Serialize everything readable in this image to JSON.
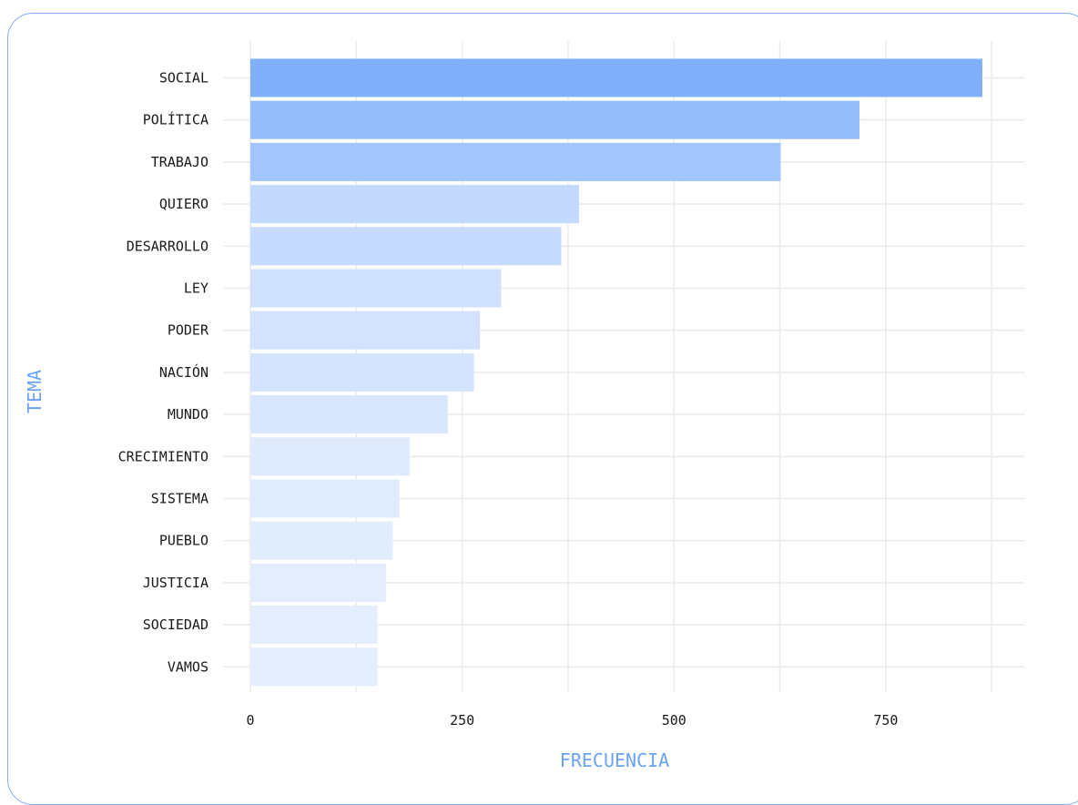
{
  "chart_data": {
    "type": "bar",
    "orientation": "horizontal",
    "title": "",
    "xlabel": "FRECUENCIA",
    "ylabel": "TEMA",
    "categories": [
      "SOCIAL",
      "POLÍTICA",
      "TRABAJO",
      "QUIERO",
      "DESARROLLO",
      "LEY",
      "PODER",
      "NACIÓN",
      "MUNDO",
      "CRECIMIENTO",
      "SISTEMA",
      "PUEBLO",
      "JUSTICIA",
      "SOCIEDAD",
      "VAMOS"
    ],
    "values": [
      864,
      719,
      626,
      388,
      367,
      296,
      271,
      264,
      233,
      188,
      176,
      168,
      160,
      150,
      150
    ],
    "x_ticks": [
      "0",
      "250",
      "500",
      "750"
    ],
    "xlim": [
      0,
      915
    ],
    "grid": true,
    "colors": {
      "bar_max": "#80b0fc",
      "bar_min": "#e4eefd",
      "grid": "#ebebeb",
      "axis_title": "#6aa3f3",
      "border": "#7fb0f5",
      "text": "#1a1a1a"
    }
  }
}
